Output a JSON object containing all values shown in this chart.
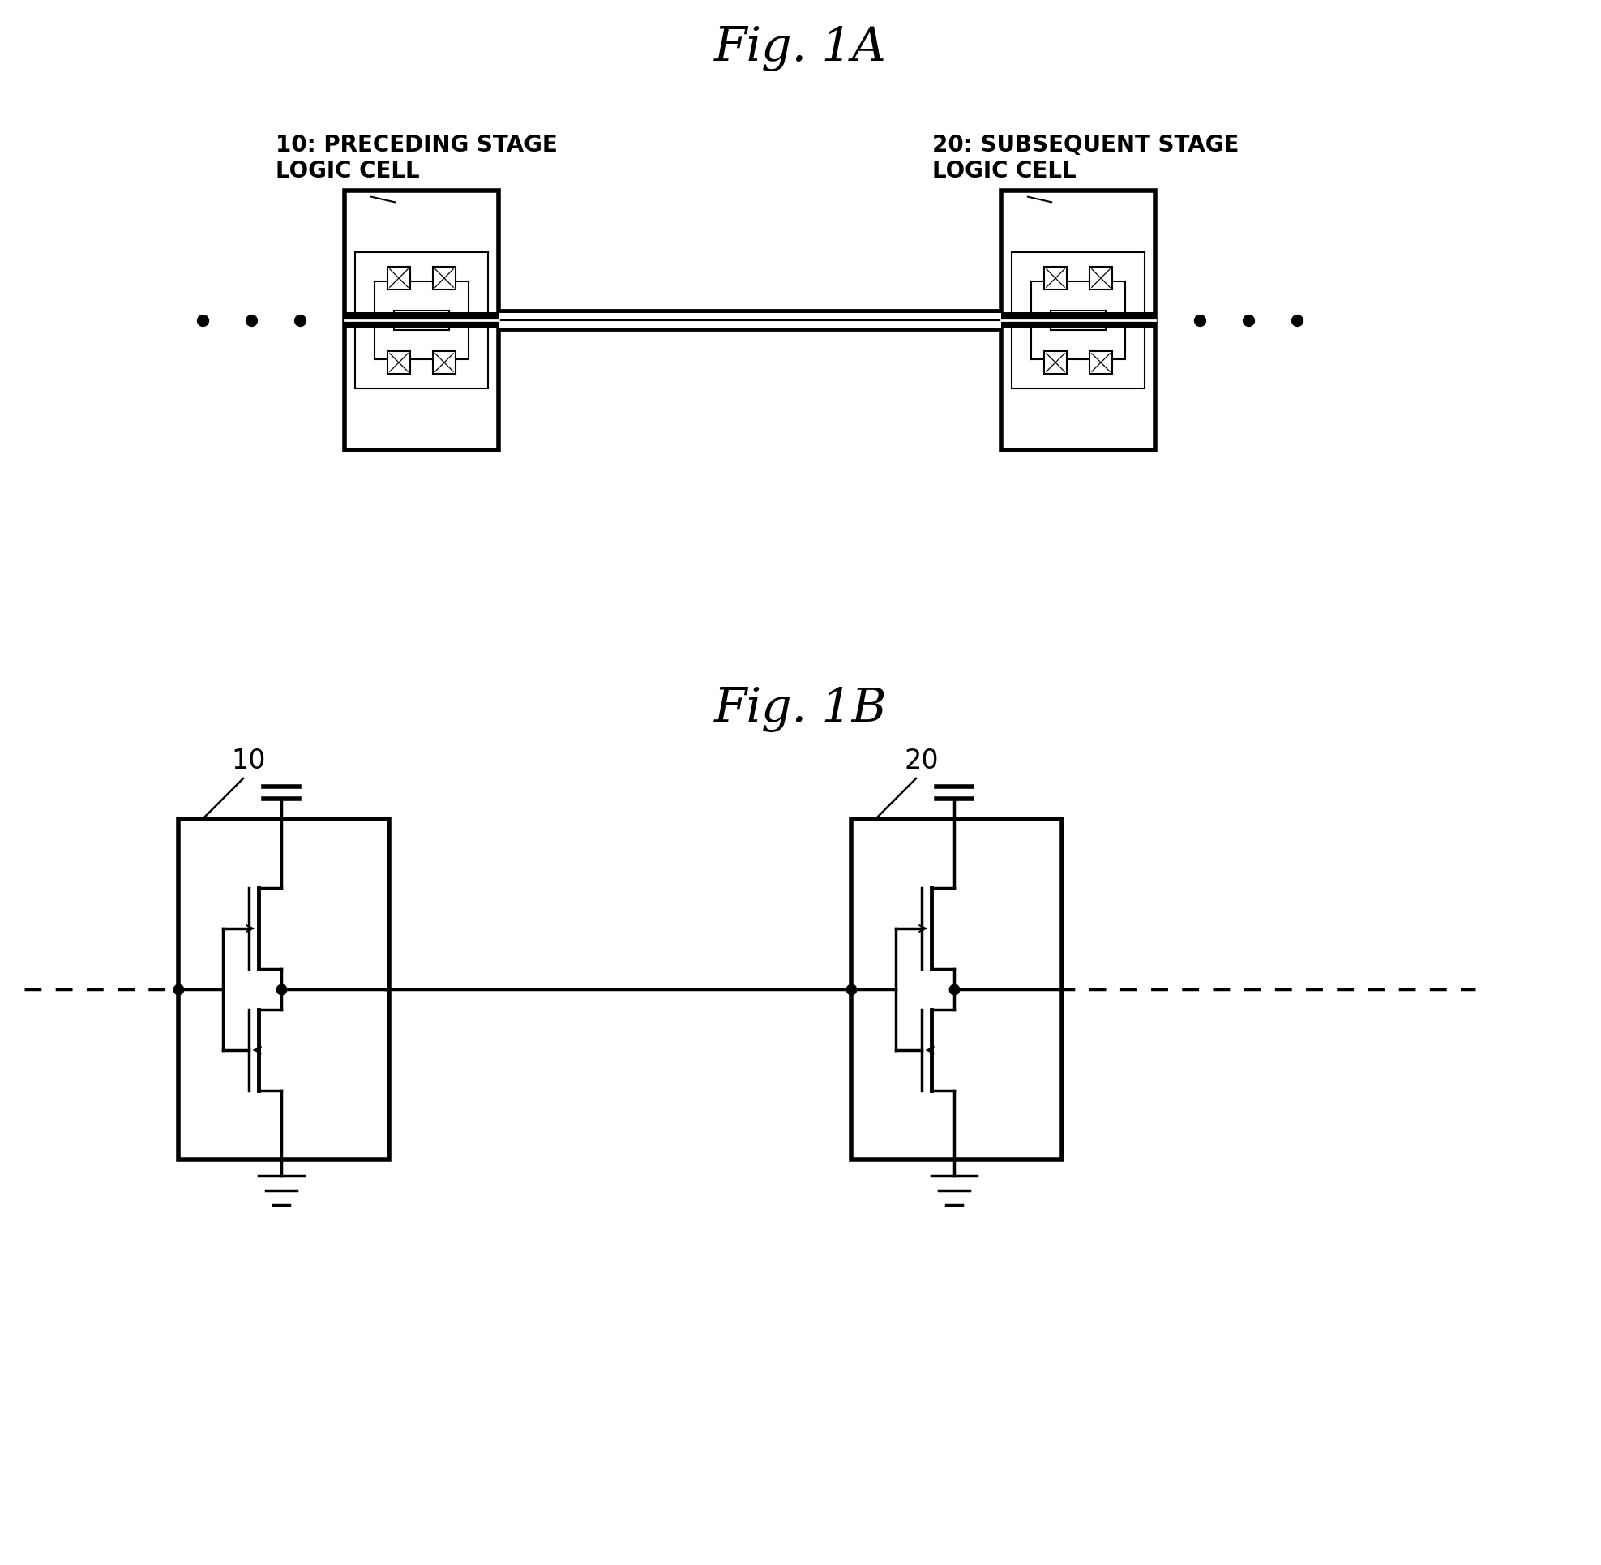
{
  "title_1A": "Fig. 1A",
  "title_1B": "Fig. 1B",
  "label_10_text": "10: PRECEDING STAGE\nLOGIC CELL",
  "label_20_text": "20: SUBSEQUENT STAGE\nLOGIC CELL",
  "label_10": "10",
  "label_20": "20",
  "bg_color": "#ffffff",
  "line_color": "#000000",
  "title_fontsize": 42,
  "anno_fontsize": 20,
  "schematic_label_fontsize": 24
}
